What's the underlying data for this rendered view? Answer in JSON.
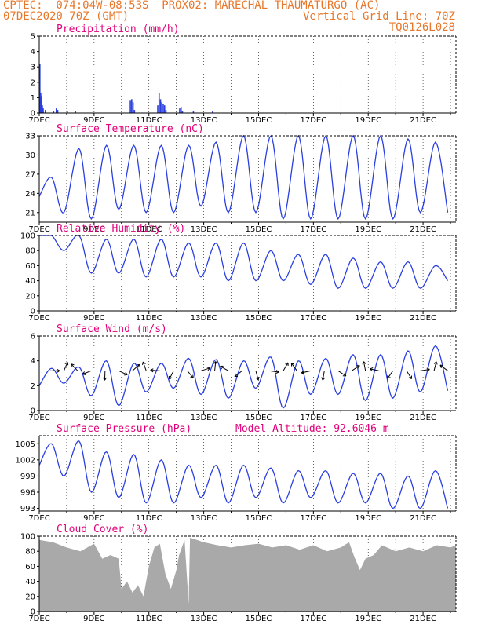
{
  "header": {
    "line1_left": "CPTEC:  074:04W-08:53S  PROX02: MARECHAL THAUMATURGO (AC)",
    "line2_left": "07DEC2020 70Z (GMT)",
    "line2_right": "Vertical Grid Line: 70Z",
    "line3_right": "TQ0126L028"
  },
  "colors": {
    "line": "#2a3fe0",
    "title": "#e0007a",
    "header": "#e8772a",
    "cloud": "#a9a9a9"
  },
  "chart_data": [
    {
      "type": "bar",
      "title": "Precipitation (mm/h)",
      "ylim": [
        0,
        5
      ],
      "yticks": [
        "0",
        "1",
        "2",
        "3",
        "4",
        "5"
      ],
      "xticks": [
        "7DEC",
        "9DEC",
        "11DEC",
        "13DEC",
        "15DEC",
        "17DEC",
        "19DEC",
        "21DEC"
      ],
      "xlim_days": [
        7,
        22.2
      ],
      "bars": [
        [
          7.0,
          3.2
        ],
        [
          7.03,
          1.3
        ],
        [
          7.06,
          1.1
        ],
        [
          7.09,
          0.5
        ],
        [
          7.12,
          0.3
        ],
        [
          7.2,
          0.2
        ],
        [
          7.5,
          0.1
        ],
        [
          7.6,
          0.3
        ],
        [
          7.65,
          0.2
        ],
        [
          8.0,
          0.1
        ],
        [
          8.3,
          0.1
        ],
        [
          10.3,
          0.8
        ],
        [
          10.35,
          0.9
        ],
        [
          10.4,
          0.7
        ],
        [
          10.45,
          0.2
        ],
        [
          11.3,
          0.5
        ],
        [
          11.35,
          1.3
        ],
        [
          11.4,
          0.9
        ],
        [
          11.45,
          0.7
        ],
        [
          11.5,
          0.6
        ],
        [
          11.55,
          0.5
        ],
        [
          11.6,
          0.2
        ],
        [
          12.1,
          0.3
        ],
        [
          12.15,
          0.4
        ],
        [
          12.2,
          0.1
        ],
        [
          12.6,
          0.1
        ],
        [
          13.3,
          0.1
        ]
      ]
    },
    {
      "type": "line",
      "title": "Surface Temperature (nC)",
      "ylim": [
        19.5,
        33
      ],
      "yticks": [
        "21",
        "24",
        "27",
        "30",
        "33"
      ],
      "xticks": [
        "7DEC",
        "9DEC",
        "11DEC",
        "13DEC",
        "15DEC",
        "17DEC",
        "19DEC",
        "21DEC"
      ],
      "xlim_days": [
        7,
        22.2
      ],
      "max": [
        26.5,
        31,
        31.5,
        31.5,
        31.5,
        31.5,
        32,
        33,
        33,
        33,
        33,
        33,
        33,
        32.5,
        32
      ],
      "min": [
        21,
        20,
        21.5,
        21,
        21,
        22,
        21,
        21,
        20,
        20,
        20,
        20,
        20,
        21,
        21
      ],
      "start": 23.5
    },
    {
      "type": "line",
      "title": "Relative Humidity (%)",
      "ylim": [
        0,
        100
      ],
      "yticks": [
        "0",
        "20",
        "40",
        "60",
        "80",
        "100"
      ],
      "xticks": [
        "7DEC",
        "9DEC",
        "11DEC",
        "13DEC",
        "15DEC",
        "17DEC",
        "19DEC",
        "21DEC"
      ],
      "xlim_days": [
        7,
        22.2
      ],
      "max": [
        100,
        100,
        95,
        95,
        95,
        90,
        90,
        90,
        80,
        75,
        75,
        70,
        65,
        65,
        60
      ],
      "min": [
        80,
        50,
        50,
        45,
        45,
        45,
        40,
        40,
        40,
        35,
        30,
        30,
        30,
        30,
        40
      ],
      "start": 100
    },
    {
      "type": "line",
      "title": "Surface Wind (m/s)",
      "ylim": [
        0,
        6
      ],
      "yticks": [
        "0",
        "2",
        "4",
        "6"
      ],
      "xticks": [
        "7DEC",
        "9DEC",
        "11DEC",
        "13DEC",
        "15DEC",
        "17DEC",
        "19DEC",
        "21DEC"
      ],
      "xlim_days": [
        7,
        22.2
      ],
      "max": [
        3.4,
        3.5,
        4.0,
        3.8,
        3.8,
        4.2,
        4.1,
        4.0,
        4.3,
        4.0,
        4.2,
        4.5,
        4.5,
        4.8,
        5.2
      ],
      "min": [
        2.2,
        1.2,
        0.4,
        1.5,
        1.8,
        1.3,
        1.0,
        1.8,
        0.2,
        1.3,
        1.3,
        0.8,
        1.0,
        1.5,
        1.6
      ],
      "start": 2.0
    },
    {
      "type": "line",
      "title": "Surface Pressure (hPa)",
      "subtitle": "Model Altitude: 92.6046 m",
      "ylim": [
        992.5,
        1006.5
      ],
      "yticks": [
        "993",
        "996",
        "999",
        "1002",
        "1005"
      ],
      "xticks": [
        "7DEC",
        "9DEC",
        "11DEC",
        "13DEC",
        "15DEC",
        "17DEC",
        "19DEC",
        "21DEC"
      ],
      "xlim_days": [
        7,
        22.2
      ],
      "max": [
        1005,
        1005.5,
        1003.5,
        1003,
        1002,
        1001,
        1001,
        1001,
        1000.5,
        1000,
        1000,
        999.5,
        999.5,
        999,
        1000
      ],
      "min": [
        999,
        996,
        995,
        994,
        994,
        995,
        994,
        995,
        994,
        995,
        994,
        994,
        993,
        993,
        993
      ],
      "start": 1001
    },
    {
      "type": "area",
      "title": "Cloud Cover (%)",
      "ylim": [
        0,
        100
      ],
      "yticks": [
        "0",
        "20",
        "40",
        "60",
        "80",
        "100"
      ],
      "xticks": [
        "7DEC",
        "9DEC",
        "11DEC",
        "13DEC",
        "15DEC",
        "17DEC",
        "19DEC",
        "21DEC"
      ],
      "xlim_days": [
        7,
        22.2
      ],
      "profile": [
        [
          7.0,
          95
        ],
        [
          7.5,
          92
        ],
        [
          8.0,
          85
        ],
        [
          8.5,
          80
        ],
        [
          9.0,
          90
        ],
        [
          9.3,
          70
        ],
        [
          9.6,
          75
        ],
        [
          9.9,
          70
        ],
        [
          10.0,
          30
        ],
        [
          10.2,
          40
        ],
        [
          10.4,
          25
        ],
        [
          10.6,
          35
        ],
        [
          10.8,
          20
        ],
        [
          11.0,
          60
        ],
        [
          11.2,
          85
        ],
        [
          11.4,
          90
        ],
        [
          11.6,
          50
        ],
        [
          11.8,
          30
        ],
        [
          12.0,
          55
        ],
        [
          12.1,
          75
        ],
        [
          12.3,
          95
        ],
        [
          12.45,
          10
        ],
        [
          12.5,
          98
        ],
        [
          13.0,
          92
        ],
        [
          13.5,
          88
        ],
        [
          14.0,
          85
        ],
        [
          14.5,
          88
        ],
        [
          15.0,
          90
        ],
        [
          15.5,
          85
        ],
        [
          16.0,
          88
        ],
        [
          16.5,
          82
        ],
        [
          17.0,
          88
        ],
        [
          17.5,
          80
        ],
        [
          18.0,
          85
        ],
        [
          18.3,
          92
        ],
        [
          18.5,
          72
        ],
        [
          18.7,
          55
        ],
        [
          18.9,
          70
        ],
        [
          19.2,
          75
        ],
        [
          19.5,
          88
        ],
        [
          20.0,
          80
        ],
        [
          20.5,
          85
        ],
        [
          21.0,
          80
        ],
        [
          21.5,
          88
        ],
        [
          22.0,
          85
        ],
        [
          22.2,
          88
        ]
      ]
    }
  ]
}
